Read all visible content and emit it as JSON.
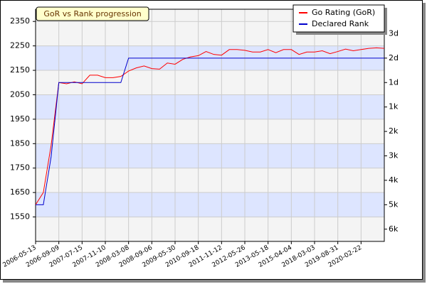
{
  "chart_data": {
    "type": "line",
    "title": "GoR vs Rank progression",
    "categories": [
      "2006-05-13",
      null,
      null,
      "2006-09-09",
      null,
      null,
      "2007-07-15",
      null,
      null,
      "2007-11-10",
      null,
      null,
      "2008-03-08",
      null,
      null,
      "2008-09-06",
      null,
      null,
      "2009-05-30",
      null,
      null,
      "2010-09-18",
      null,
      null,
      "2011-11-12",
      null,
      null,
      "2012-05-26",
      null,
      null,
      "2013-05-18",
      null,
      null,
      "2015-04-04",
      null,
      null,
      "2018-03-03",
      null,
      null,
      "2019-08-31",
      null,
      null,
      "2020-02-22",
      null,
      null,
      null
    ],
    "series": [
      {
        "name": "Go Rating (GoR)",
        "color": "#ff0000",
        "values": [
          1600,
          1650,
          1842,
          2100,
          2095,
          2103,
          2095,
          2130,
          2130,
          2120,
          2120,
          2125,
          2147,
          2160,
          2168,
          2157,
          2155,
          2180,
          2175,
          2195,
          2205,
          2210,
          2227,
          2215,
          2212,
          2235,
          2235,
          2232,
          2225,
          2225,
          2235,
          2222,
          2235,
          2235,
          2215,
          2225,
          2225,
          2230,
          2218,
          2227,
          2237,
          2230,
          2235,
          2240,
          2242,
          2240
        ]
      },
      {
        "name": "Declared Rank",
        "color": "#0000cc",
        "axis": "y2",
        "values": [
          1600,
          1600,
          1795,
          2100,
          2100,
          2100,
          2100,
          2100,
          2100,
          2100,
          2100,
          2100,
          2200,
          2200,
          2200,
          2200,
          2200,
          2200,
          2200,
          2200,
          2200,
          2200,
          2200,
          2200,
          2200,
          2200,
          2200,
          2200,
          2200,
          2200,
          2200,
          2200,
          2200,
          2200,
          2200,
          2200,
          2200,
          2200,
          2200,
          2200,
          2200,
          2200,
          2200,
          2200,
          2200,
          2200
        ]
      }
    ],
    "ylim": [
      1450,
      2400
    ],
    "yticks": [
      1550,
      1650,
      1750,
      1850,
      1950,
      2050,
      2150,
      2250,
      2350
    ],
    "y2lim": [
      1450,
      2400
    ],
    "y2ticks": [
      {
        "value": 1500,
        "label": "6k"
      },
      {
        "value": 1600,
        "label": "5k"
      },
      {
        "value": 1700,
        "label": "4k"
      },
      {
        "value": 1800,
        "label": "3k"
      },
      {
        "value": 1900,
        "label": "2k"
      },
      {
        "value": 2000,
        "label": "1k"
      },
      {
        "value": 2100,
        "label": "1d"
      },
      {
        "value": 2200,
        "label": "2d"
      },
      {
        "value": 2300,
        "label": "3d"
      }
    ],
    "grid": true,
    "legend": "upper right"
  }
}
